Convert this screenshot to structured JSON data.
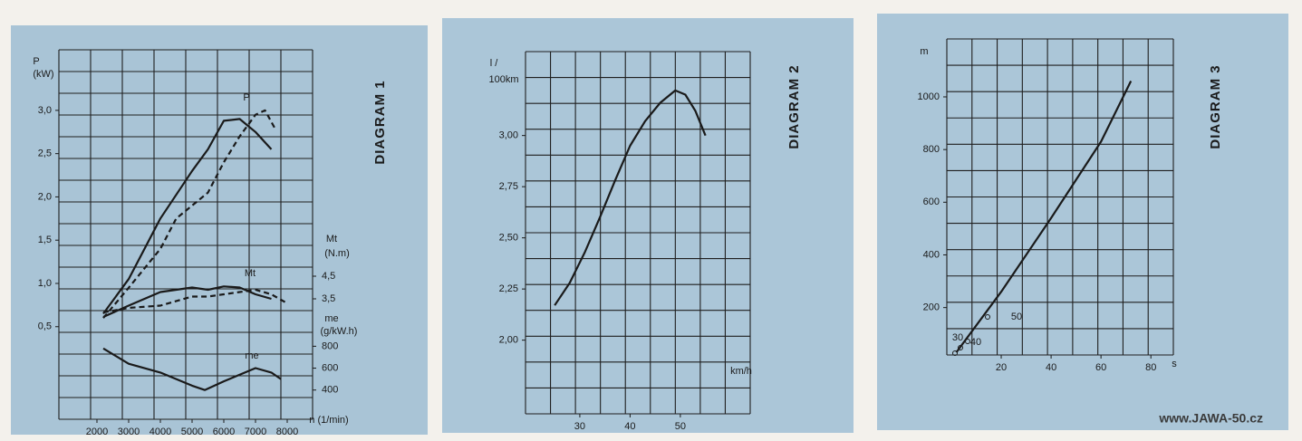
{
  "chart_data": [
    {
      "type": "line",
      "title": "DIAGRAM 1",
      "xlabel": "n (1/min)",
      "ylabel": [
        "P",
        "(kW)"
      ],
      "y2label": [
        "Mt",
        "(N.m)"
      ],
      "y3label": [
        "me",
        "(g/kW.h)"
      ],
      "annotations": [
        "P",
        "Mt",
        "me"
      ],
      "xlim": [
        800,
        8800
      ],
      "xticks": [
        2000,
        3000,
        4000,
        5000,
        6000,
        7000,
        8000
      ],
      "ylim": [
        -0.57,
        3.7
      ],
      "yticks": [
        {
          "value": 0.5,
          "label": "0,5"
        },
        {
          "value": 1.0,
          "label": "1,0"
        },
        {
          "value": 1.5,
          "label": "1,5"
        },
        {
          "value": 2.0,
          "label": "2,0"
        },
        {
          "value": 2.5,
          "label": "2,5"
        },
        {
          "value": 3.0,
          "label": "3,0"
        }
      ],
      "y2lim": [
        -1.82,
        14.5
      ],
      "y2ticks": [
        {
          "value": 3.5,
          "label": "3,5"
        },
        {
          "value": 4.5,
          "label": "4,5"
        }
      ],
      "y3lim": [
        133,
        3508
      ],
      "y3ticks": [
        400,
        600,
        800
      ],
      "grid": true,
      "series": [
        {
          "color": "#1a1a1a",
          "style": "solid",
          "x": [
            2200,
            3000,
            4000,
            5000,
            5500,
            6000,
            6500,
            7000,
            7500
          ],
          "values": [
            0.65,
            1.05,
            1.75,
            2.3,
            2.55,
            2.88,
            2.9,
            2.75,
            2.55
          ]
        },
        {
          "color": "#1a1a1a",
          "style": "dashed",
          "x": [
            2200,
            3000,
            4000,
            4500,
            5000,
            5500,
            6000,
            6500,
            7000,
            7300,
            7600
          ],
          "values": [
            0.6,
            0.95,
            1.4,
            1.75,
            1.9,
            2.05,
            2.4,
            2.7,
            2.95,
            3.0,
            2.8
          ]
        },
        {
          "color": "#1a1a1a",
          "style": "solid",
          "axis": "y2",
          "x": [
            2200,
            3000,
            4000,
            5000,
            5500,
            6000,
            6500,
            7000,
            7500
          ],
          "values": [
            2.7,
            3.2,
            3.8,
            4.0,
            3.9,
            4.05,
            4.0,
            3.7,
            3.5
          ]
        },
        {
          "color": "#1a1a1a",
          "style": "dashed",
          "axis": "y2",
          "x": [
            2200,
            3000,
            4000,
            5000,
            5500,
            6000,
            6500,
            7000,
            7500,
            8000
          ],
          "values": [
            2.9,
            3.1,
            3.2,
            3.6,
            3.6,
            3.7,
            3.8,
            3.9,
            3.7,
            3.3
          ]
        },
        {
          "color": "#1a1a1a",
          "style": "solid",
          "axis": "y3",
          "x": [
            2200,
            3000,
            4000,
            5000,
            5400,
            6000,
            7000,
            7500,
            7800
          ],
          "values": [
            780,
            640,
            560,
            440,
            400,
            480,
            600,
            560,
            500
          ]
        }
      ]
    },
    {
      "type": "line",
      "title": "DIAGRAM 2",
      "xlabel": "km/h",
      "ylabel": [
        "l /",
        "100km"
      ],
      "xlim": [
        19.2,
        63.9
      ],
      "xticks": [
        30,
        40,
        50
      ],
      "ylim": [
        1.64,
        3.41
      ],
      "yticks": [
        {
          "value": 2.0,
          "label": "2,00"
        },
        {
          "value": 2.25,
          "label": "2,25"
        },
        {
          "value": 2.5,
          "label": "2,50"
        },
        {
          "value": 2.75,
          "label": "2,75"
        },
        {
          "value": 3.0,
          "label": "3,00"
        }
      ],
      "grid": true,
      "series": [
        {
          "color": "#1a1a1a",
          "style": "solid",
          "x": [
            25,
            28,
            31,
            34,
            37,
            40,
            43,
            46,
            49,
            51,
            53,
            55
          ],
          "values": [
            2.17,
            2.28,
            2.43,
            2.6,
            2.78,
            2.95,
            3.07,
            3.16,
            3.22,
            3.2,
            3.12,
            3.0
          ]
        }
      ]
    },
    {
      "type": "line",
      "title": "DIAGRAM 3",
      "xlabel": "s",
      "ylabel": [
        "m"
      ],
      "annotations": [
        "30",
        "40",
        "50"
      ],
      "xlim": [
        -1.8,
        89
      ],
      "xticks": [
        20,
        40,
        60,
        80
      ],
      "ylim": [
        20,
        1220
      ],
      "yticks": [
        200,
        400,
        600,
        800,
        1000
      ],
      "grid": true,
      "series": [
        {
          "color": "#1a1a1a",
          "style": "solid",
          "x": [
            2,
            20,
            40,
            60,
            72
          ],
          "values": [
            30,
            260,
            540,
            830,
            1060
          ]
        }
      ]
    }
  ],
  "watermark": "www.JAWA-50.cz"
}
